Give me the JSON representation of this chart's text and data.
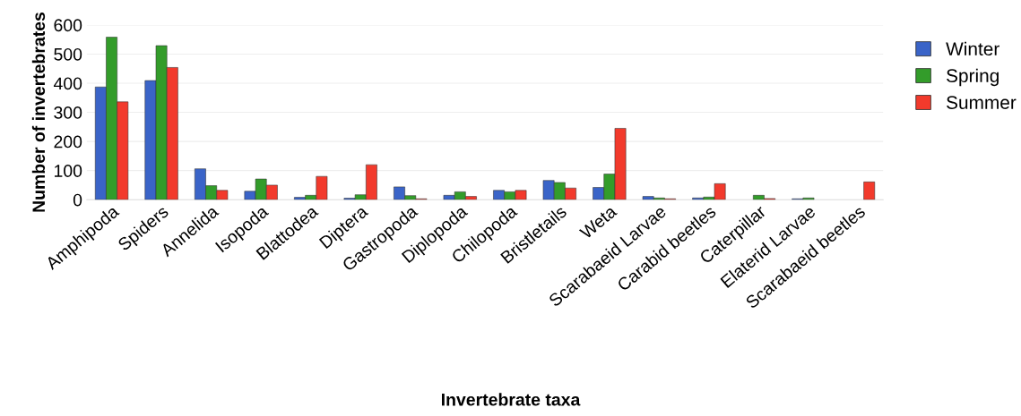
{
  "chart_data": {
    "type": "bar",
    "xlabel": "Invertebrate taxa",
    "ylabel": "Number of invertebrates",
    "categories": [
      "Amphipoda",
      "Spiders",
      "Annelida",
      "Isopoda",
      "Blattodea",
      "Diptera",
      "Gastropoda",
      "Diplopoda",
      "Chilopoda",
      "Bristletails",
      "Weta",
      "Scarabaeid Larvae",
      "Carabid beetles",
      "Caterpillar",
      "Elaterid Larvae",
      "Scarabaeid beetles"
    ],
    "series": [
      {
        "name": "Winter",
        "color": "#3a64c8",
        "values": [
          387,
          409,
          106,
          29,
          8,
          5,
          44,
          15,
          32,
          66,
          42,
          11,
          6,
          null,
          3,
          null
        ]
      },
      {
        "name": "Spring",
        "color": "#339c2a",
        "values": [
          558,
          529,
          48,
          71,
          15,
          17,
          14,
          27,
          27,
          59,
          88,
          6,
          9,
          15,
          6,
          null
        ]
      },
      {
        "name": "Summer",
        "color": "#f23a2c",
        "values": [
          336,
          454,
          32,
          50,
          80,
          120,
          3,
          11,
          32,
          40,
          245,
          3,
          55,
          4,
          null,
          61
        ]
      }
    ],
    "ylim": [
      0,
      600
    ],
    "yticks": [
      0,
      100,
      200,
      300,
      400,
      500,
      600
    ],
    "grid": "y",
    "legend": "top right"
  }
}
